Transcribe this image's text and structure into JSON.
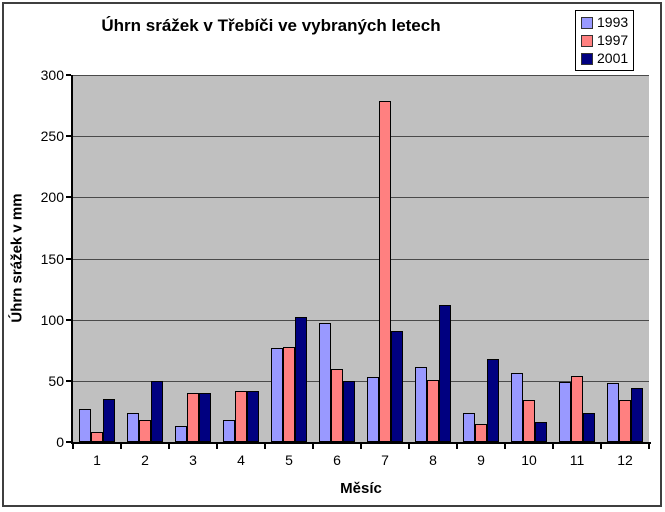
{
  "chart_data": {
    "type": "bar",
    "title": "Úhrn srážek v Třebíči ve vybraných letech",
    "xlabel": "Měsíc",
    "ylabel": "Úhrn srážek v mm",
    "ylim": [
      0,
      300
    ],
    "yticks": [
      0,
      50,
      100,
      150,
      200,
      250,
      300
    ],
    "categories": [
      "1",
      "2",
      "3",
      "4",
      "5",
      "6",
      "7",
      "8",
      "9",
      "10",
      "11",
      "12"
    ],
    "series": [
      {
        "name": "1993",
        "color": "#9999ff",
        "values": [
          27,
          24,
          13,
          18,
          77,
          97,
          53,
          61,
          24,
          56,
          49,
          48
        ]
      },
      {
        "name": "1997",
        "color": "#ff8080",
        "values": [
          8,
          18,
          40,
          42,
          78,
          60,
          279,
          51,
          15,
          34,
          54,
          34
        ]
      },
      {
        "name": "2001",
        "color": "#000080",
        "values": [
          35,
          50,
          40,
          42,
          102,
          50,
          91,
          112,
          68,
          16,
          24,
          44
        ]
      }
    ],
    "grid": true,
    "gridline_color": "#4a4a4a",
    "plot_bg": "#c0c0c0",
    "bar_border_color": "#000000",
    "legend_position": "top-right",
    "legend_bg": "#ffffff"
  }
}
